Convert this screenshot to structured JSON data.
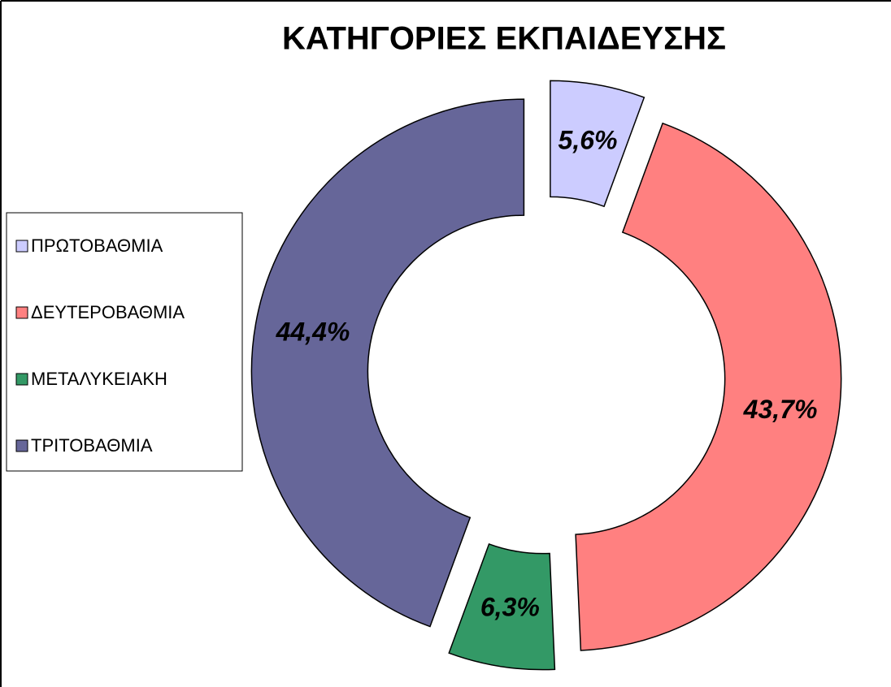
{
  "chart_data": {
    "type": "donut",
    "title": "ΚΑΤΗΓΟΡΙΕΣ ΕΚΠΑΙΔΕΥΣΗΣ",
    "categories": [
      "ΠΡΩΤΟΒΑΘΜΙΑ",
      "ΔΕΥΤΕΡΟΒΑΘΜΙΑ",
      "ΜΕΤΑΛΥΚΕΙΑΚΗ",
      "ΤΡΙΤΟΒΑΘΜΙΑ"
    ],
    "values": [
      5.6,
      43.7,
      6.3,
      44.4
    ],
    "value_labels": [
      "5,6%",
      "43,7%",
      "6,3%",
      "44,4%"
    ],
    "colors": [
      "#ccccff",
      "#ff8080",
      "#339966",
      "#666699"
    ],
    "legend": "left"
  }
}
